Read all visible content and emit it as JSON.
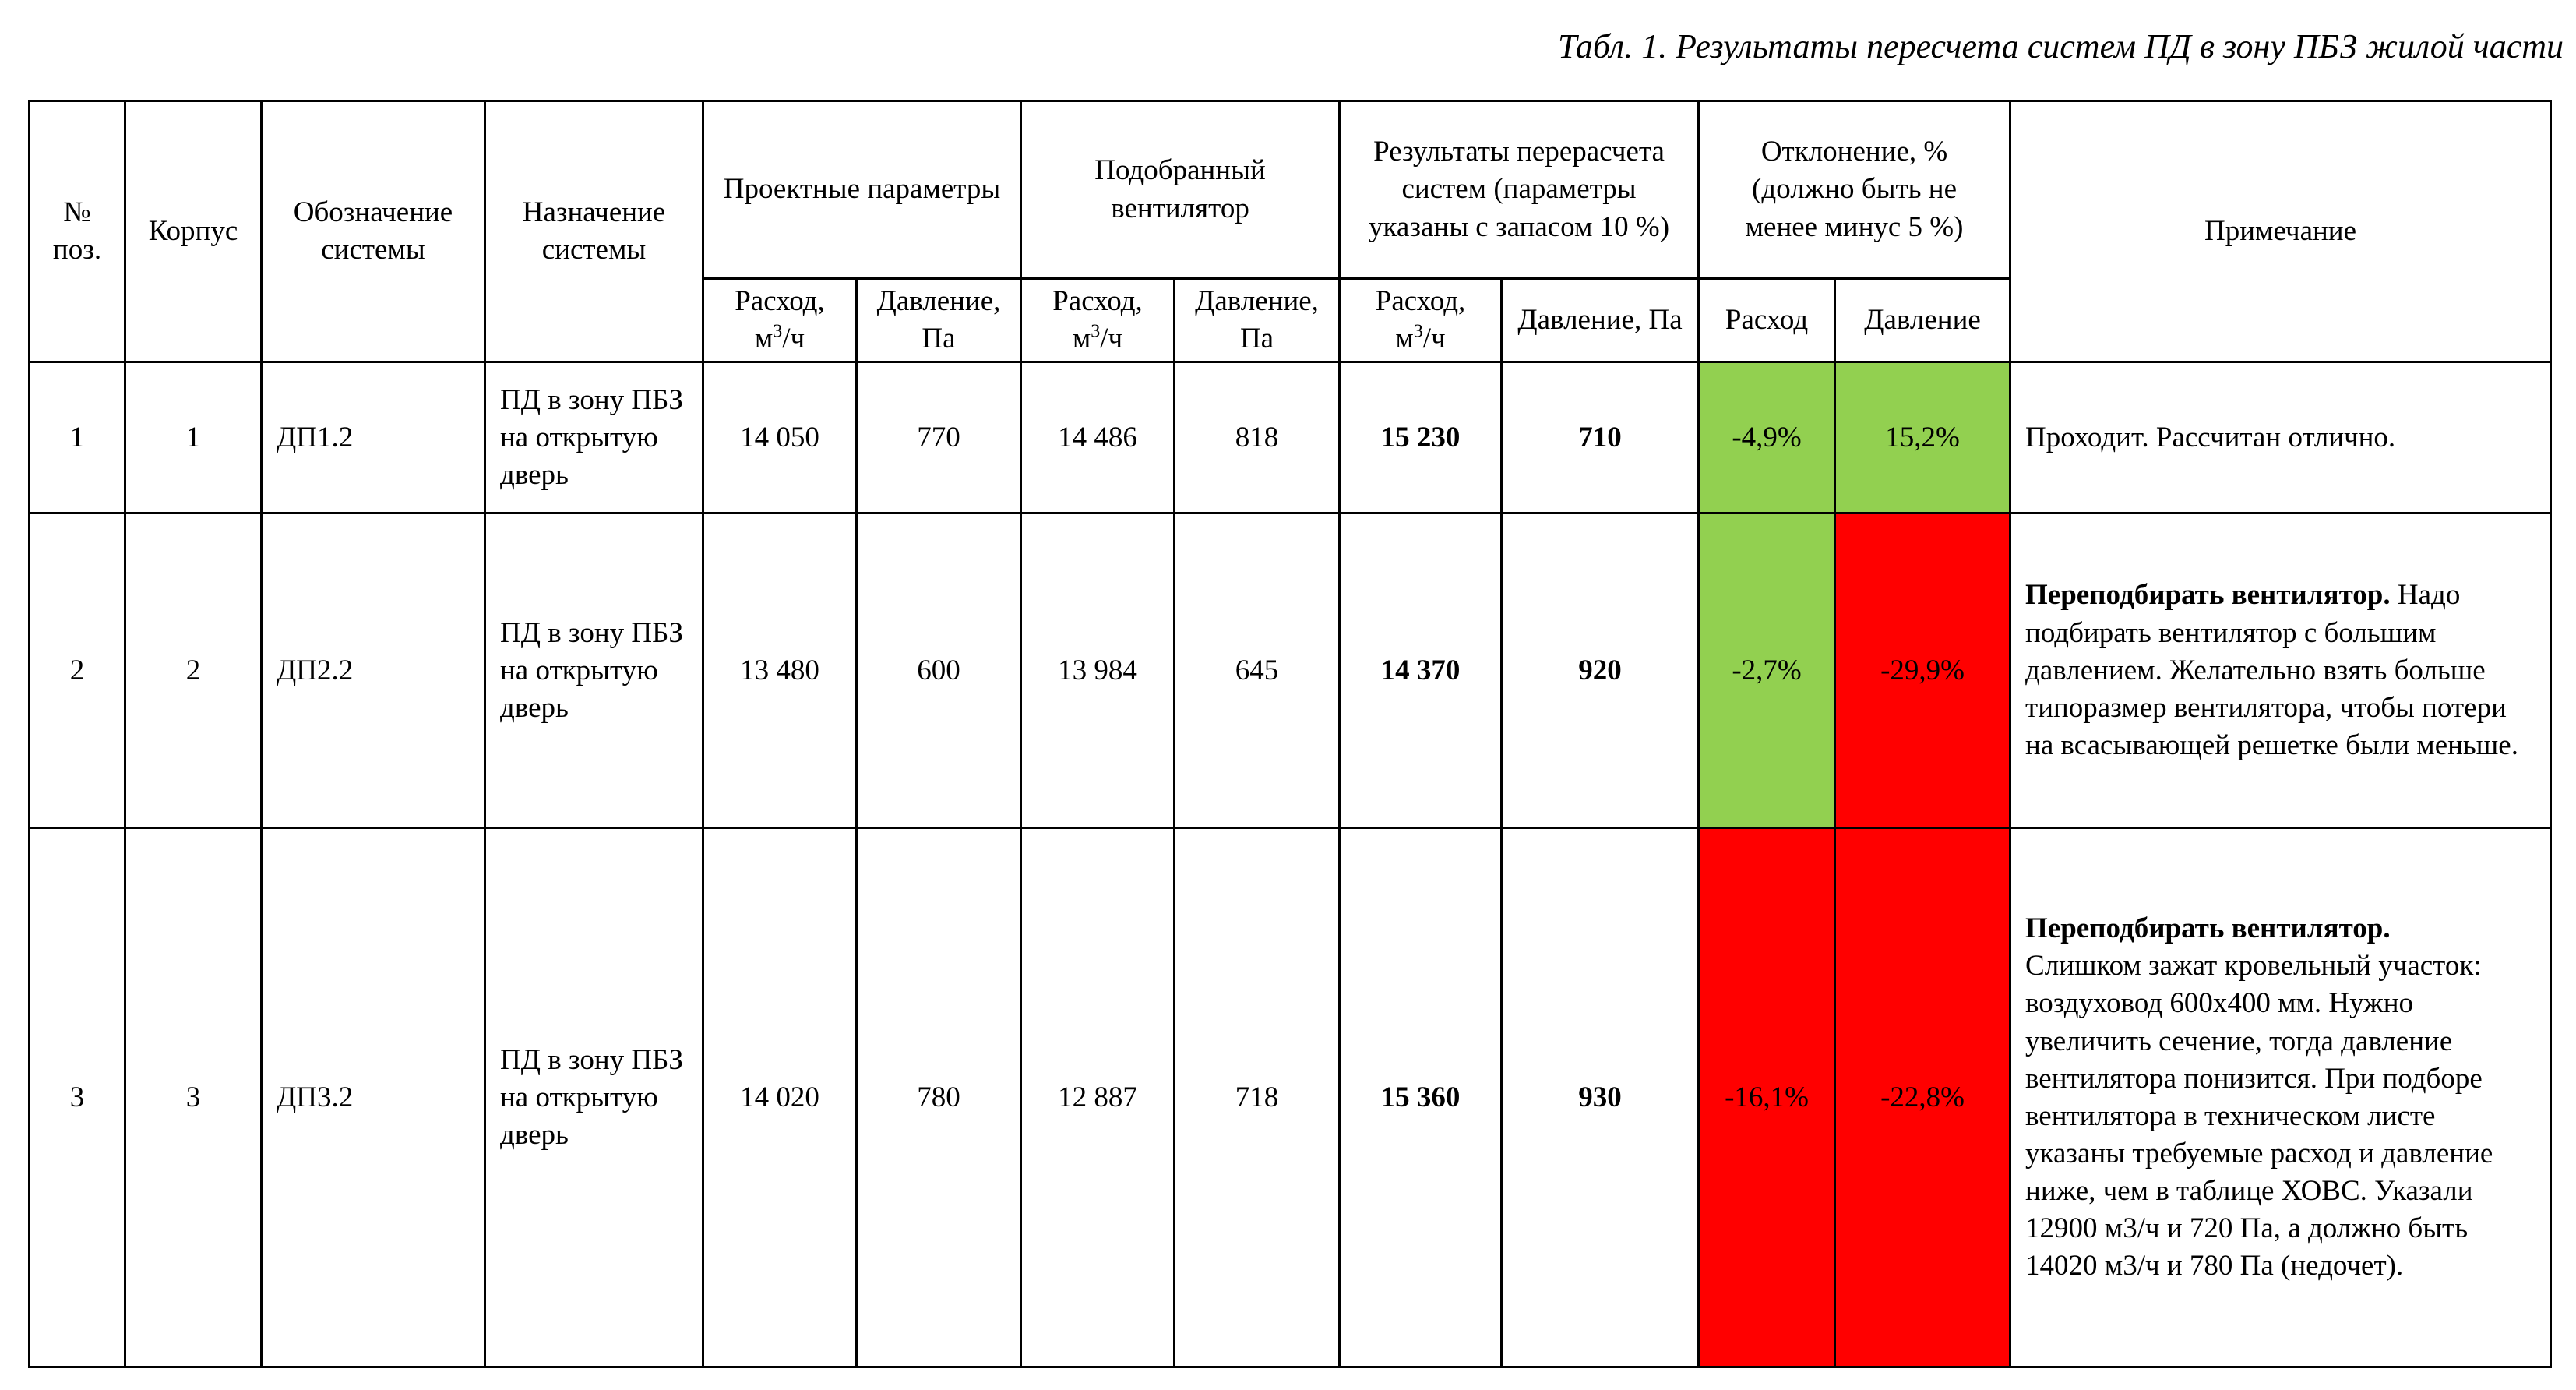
{
  "caption": "Табл. 1. Результаты пересчета систем ПД в зону ПБЗ жилой части",
  "colors": {
    "ok": "#92d050",
    "fail": "#ff0000"
  },
  "header": {
    "pos_label": "№ поз.",
    "building_label": "Корпус",
    "designation_label": "Обозначение системы",
    "purpose_label": "Назначение системы",
    "design_label": "Проектные параметры",
    "fan_label": "Подобранный вентилятор",
    "recalc_label": "Результаты перерасчета систем (параметры указаны с запасом 10 %)",
    "deviation_label": "Отклонение, % (должно быть не менее минус 5 %)",
    "note_label": "Примечание",
    "flow_label": "Расход,",
    "flow_unit_pre": "м",
    "flow_unit_sup": "3",
    "flow_unit_post": "/ч",
    "pressure_label": "Давление, Па",
    "dev_flow_label": "Расход",
    "dev_pressure_label": "Давление"
  },
  "rows": [
    {
      "pos": "1",
      "building": "1",
      "designation": "ДП1.2",
      "purpose": "ПД в зону ПБЗ на открытую дверь",
      "design_flow": "14 050",
      "design_pressure": "770",
      "fan_flow": "14 486",
      "fan_pressure": "818",
      "recalc_flow": "15 230",
      "recalc_pressure": "710",
      "dev_flow": "-4,9%",
      "dev_flow_status": "ok",
      "dev_pressure": "15,2%",
      "dev_pressure_status": "ok",
      "note_bold": "",
      "note": "Проходит. Рассчитан отлично."
    },
    {
      "pos": "2",
      "building": "2",
      "designation": "ДП2.2",
      "purpose": "ПД в зону ПБЗ на открытую дверь",
      "design_flow": "13 480",
      "design_pressure": "600",
      "fan_flow": "13 984",
      "fan_pressure": "645",
      "recalc_flow": "14 370",
      "recalc_pressure": "920",
      "dev_flow": "-2,7%",
      "dev_flow_status": "ok",
      "dev_pressure": "-29,9%",
      "dev_pressure_status": "fail",
      "note_bold": "Переподбирать вентилятор.",
      "note": "Надо подбирать вентилятор с большим давлением. Желательно взять больше типоразмер вентилятора, чтобы потери на всасывающей решетке были меньше."
    },
    {
      "pos": "3",
      "building": "3",
      "designation": "ДП3.2",
      "purpose": "ПД в зону ПБЗ на открытую дверь",
      "design_flow": "14 020",
      "design_pressure": "780",
      "fan_flow": "12 887",
      "fan_pressure": "718",
      "recalc_flow": "15 360",
      "recalc_pressure": "930",
      "dev_flow": "-16,1%",
      "dev_flow_status": "fail",
      "dev_pressure": "-22,8%",
      "dev_pressure_status": "fail",
      "note_bold": "Переподбирать вентилятор.",
      "note": "Слишком зажат кровельный участок: воздуховод 600х400 мм. Нужно увеличить сечение, тогда давление вентилятора понизится. При подборе вентилятора в техническом листе указаны требуемые расход и давление ниже, чем в таблице ХОВС. Указали 12900 м3/ч и 720 Па, а должно быть 14020 м3/ч и 780 Па (недочет)."
    }
  ]
}
